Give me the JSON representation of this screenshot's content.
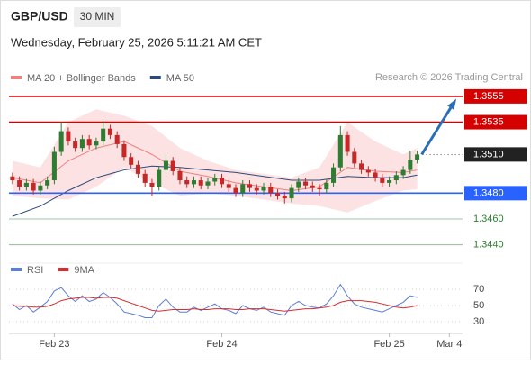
{
  "header": {
    "symbol": "GBP/USD",
    "interval": "30 MIN",
    "timestamp": "Wednesday, February 25, 2026 5:11:21 AM CET",
    "credit": "Research © 2026 Trading Central"
  },
  "chart_data": [
    {
      "type": "candlestick",
      "x": [
        -6,
        -5,
        -4,
        -3,
        -2,
        -1,
        0,
        1,
        2,
        3,
        4,
        5,
        6,
        7,
        8,
        9,
        10,
        11,
        12,
        13,
        14,
        15,
        16,
        17,
        18,
        19,
        20,
        21,
        22,
        23,
        24,
        25,
        26,
        27,
        28,
        29,
        30,
        31,
        32,
        33,
        34,
        35,
        36,
        37,
        38,
        39,
        40,
        41,
        42,
        43,
        44,
        45,
        46,
        47,
        48,
        49,
        50,
        51,
        52
      ],
      "open": [
        1.3493,
        1.349,
        1.3485,
        1.3488,
        1.3482,
        1.3486,
        1.349,
        1.3512,
        1.3528,
        1.352,
        1.3515,
        1.3522,
        1.3517,
        1.352,
        1.353,
        1.3525,
        1.3518,
        1.3508,
        1.3502,
        1.3495,
        1.3488,
        1.3485,
        1.3498,
        1.3505,
        1.3497,
        1.349,
        1.3487,
        1.349,
        1.3486,
        1.3489,
        1.3492,
        1.3487,
        1.3484,
        1.348,
        1.3487,
        1.3484,
        1.3482,
        1.3485,
        1.348,
        1.3478,
        1.3476,
        1.3484,
        1.3489,
        1.3486,
        1.3484,
        1.3483,
        1.3488,
        1.35,
        1.3525,
        1.3512,
        1.3503,
        1.3498,
        1.3496,
        1.3492,
        1.3488,
        1.349,
        1.3494,
        1.3498,
        1.3506
      ],
      "high": [
        1.3496,
        1.3493,
        1.3491,
        1.3491,
        1.3489,
        1.3493,
        1.3516,
        1.3535,
        1.3531,
        1.3523,
        1.3525,
        1.3525,
        1.3523,
        1.3536,
        1.3533,
        1.3528,
        1.3521,
        1.3511,
        1.3505,
        1.3498,
        1.3491,
        1.3501,
        1.351,
        1.3508,
        1.35,
        1.3493,
        1.3493,
        1.3493,
        1.3492,
        1.3495,
        1.3495,
        1.349,
        1.3487,
        1.349,
        1.349,
        1.3487,
        1.3488,
        1.3488,
        1.3483,
        1.3481,
        1.3487,
        1.3492,
        1.3492,
        1.3489,
        1.3487,
        1.3491,
        1.3503,
        1.3532,
        1.3528,
        1.3515,
        1.3506,
        1.3501,
        1.3499,
        1.3495,
        1.3493,
        1.3497,
        1.3501,
        1.3513,
        1.3513
      ],
      "low": [
        1.3487,
        1.3482,
        1.3482,
        1.3479,
        1.3479,
        1.3483,
        1.3487,
        1.3509,
        1.3517,
        1.3512,
        1.3512,
        1.3514,
        1.3514,
        1.3517,
        1.3522,
        1.3515,
        1.3505,
        1.3499,
        1.3492,
        1.3485,
        1.3478,
        1.3482,
        1.3495,
        1.3494,
        1.3487,
        1.3484,
        1.3484,
        1.3483,
        1.3483,
        1.3486,
        1.3484,
        1.3481,
        1.3477,
        1.3477,
        1.3481,
        1.3479,
        1.3479,
        1.3477,
        1.3475,
        1.3472,
        1.3473,
        1.3481,
        1.3483,
        1.3481,
        1.3478,
        1.348,
        1.3485,
        1.3497,
        1.3509,
        1.35,
        1.3495,
        1.3493,
        1.3489,
        1.3485,
        1.3485,
        1.3487,
        1.3491,
        1.3495,
        1.3503
      ],
      "close": [
        1.349,
        1.3485,
        1.3488,
        1.3482,
        1.3486,
        1.349,
        1.3512,
        1.3528,
        1.352,
        1.3515,
        1.3522,
        1.3517,
        1.352,
        1.353,
        1.3525,
        1.3518,
        1.3508,
        1.3502,
        1.3495,
        1.3488,
        1.3485,
        1.3498,
        1.3505,
        1.3497,
        1.349,
        1.3487,
        1.349,
        1.3486,
        1.3489,
        1.3492,
        1.3487,
        1.3484,
        1.348,
        1.3487,
        1.3484,
        1.3482,
        1.3485,
        1.348,
        1.3478,
        1.3476,
        1.3484,
        1.3489,
        1.3486,
        1.3484,
        1.3483,
        1.3488,
        1.35,
        1.3525,
        1.3512,
        1.3503,
        1.3498,
        1.3496,
        1.3492,
        1.3488,
        1.349,
        1.3494,
        1.3498,
        1.3506,
        1.351
      ],
      "up_color": "#2e7d32",
      "down_color": "#c62828",
      "indicators": [
        {
          "name": "MA 20 + Bollinger Bands",
          "color": "#f08080",
          "band_color": "#fbd5d5",
          "x": [
            -6,
            -2,
            2,
            6,
            10,
            14,
            18,
            22,
            26,
            30,
            34,
            38,
            42,
            46,
            50,
            52
          ],
          "values": [
            1.3492,
            1.3488,
            1.3505,
            1.3515,
            1.352,
            1.351,
            1.3497,
            1.3493,
            1.3488,
            1.3485,
            1.3482,
            1.3485,
            1.35,
            1.3497,
            1.3496,
            1.3498
          ],
          "upper": [
            1.3505,
            1.35,
            1.3535,
            1.3545,
            1.354,
            1.3532,
            1.3515,
            1.3505,
            1.3498,
            1.3495,
            1.3492,
            1.35,
            1.3535,
            1.352,
            1.351,
            1.3515
          ],
          "lower": [
            1.3478,
            1.3476,
            1.3475,
            1.3485,
            1.35,
            1.3488,
            1.3478,
            1.348,
            1.3478,
            1.3475,
            1.3472,
            1.347,
            1.3465,
            1.3474,
            1.3482,
            1.3483
          ]
        },
        {
          "name": "MA 50",
          "color": "#2c4a7c",
          "x": [
            -6,
            -2,
            2,
            6,
            10,
            14,
            18,
            22,
            26,
            30,
            34,
            38,
            42,
            46,
            50,
            52
          ],
          "values": [
            1.3462,
            1.347,
            1.3482,
            1.3492,
            1.3498,
            1.3501,
            1.35,
            1.3498,
            1.3496,
            1.3493,
            1.349,
            1.349,
            1.3493,
            1.3492,
            1.3492,
            1.3494
          ]
        }
      ],
      "levels": [
        {
          "value": 1.3555,
          "label": "1.3555",
          "color": "#d50000",
          "line": "solid",
          "boxed": true
        },
        {
          "value": 1.3535,
          "label": "1.3535",
          "color": "#d50000",
          "line": "solid",
          "boxed": true
        },
        {
          "value": 1.351,
          "label": "1.3510",
          "color": "#222222",
          "line": "dotted",
          "boxed": true
        },
        {
          "value": 1.348,
          "label": "1.3480",
          "color": "#2962ff",
          "line": "solid",
          "boxed": true
        },
        {
          "value": 1.346,
          "label": "1.3460",
          "color": "#2e7d32",
          "line": "thin",
          "boxed": false
        },
        {
          "value": 1.344,
          "label": "1.3440",
          "color": "#2e7d32",
          "line": "thin",
          "boxed": false
        }
      ],
      "ylim": [
        1.343,
        1.3564
      ],
      "xlim": [
        -6.5,
        58.5
      ],
      "xticks": [
        {
          "value": 0,
          "label": "Feb 23"
        },
        {
          "value": 24,
          "label": "Feb 24"
        },
        {
          "value": 48,
          "label": "Feb 25"
        },
        {
          "value": 56.6,
          "label": "Mar 4"
        }
      ]
    },
    {
      "type": "line",
      "x": [
        -6,
        -5,
        -4,
        -3,
        -2,
        -1,
        0,
        1,
        2,
        3,
        4,
        5,
        6,
        7,
        8,
        9,
        10,
        11,
        12,
        13,
        14,
        15,
        16,
        17,
        18,
        19,
        20,
        21,
        22,
        23,
        24,
        25,
        26,
        27,
        28,
        29,
        30,
        31,
        32,
        33,
        34,
        35,
        36,
        37,
        38,
        39,
        40,
        41,
        42,
        43,
        44,
        45,
        46,
        47,
        48,
        49,
        50,
        51,
        52
      ],
      "series": [
        {
          "name": "RSI",
          "color": "#5b7fd6",
          "values": [
            52,
            45,
            50,
            42,
            48,
            55,
            68,
            72,
            62,
            55,
            62,
            55,
            58,
            66,
            60,
            52,
            42,
            40,
            38,
            35,
            35,
            50,
            58,
            48,
            42,
            42,
            48,
            44,
            48,
            52,
            46,
            44,
            40,
            50,
            46,
            44,
            48,
            42,
            40,
            38,
            50,
            55,
            50,
            48,
            47,
            52,
            62,
            76,
            62,
            52,
            48,
            46,
            44,
            42,
            46,
            50,
            54,
            62,
            60
          ]
        },
        {
          "name": "9MA",
          "color": "#d32f2f",
          "values": [
            50,
            49,
            49,
            48,
            48,
            49,
            52,
            56,
            58,
            59,
            60,
            60,
            59,
            60,
            60,
            59,
            56,
            53,
            50,
            47,
            44,
            43,
            44,
            45,
            45,
            45,
            46,
            45,
            45,
            46,
            46,
            46,
            45,
            45,
            46,
            46,
            46,
            45,
            44,
            43,
            44,
            45,
            46,
            46,
            47,
            48,
            50,
            54,
            56,
            56,
            56,
            55,
            54,
            52,
            50,
            48,
            47,
            48,
            50
          ]
        }
      ],
      "ylim": [
        20,
        80
      ],
      "yticks": [
        70,
        50,
        30
      ],
      "xlim": [
        -6.5,
        58.5
      ]
    }
  ]
}
